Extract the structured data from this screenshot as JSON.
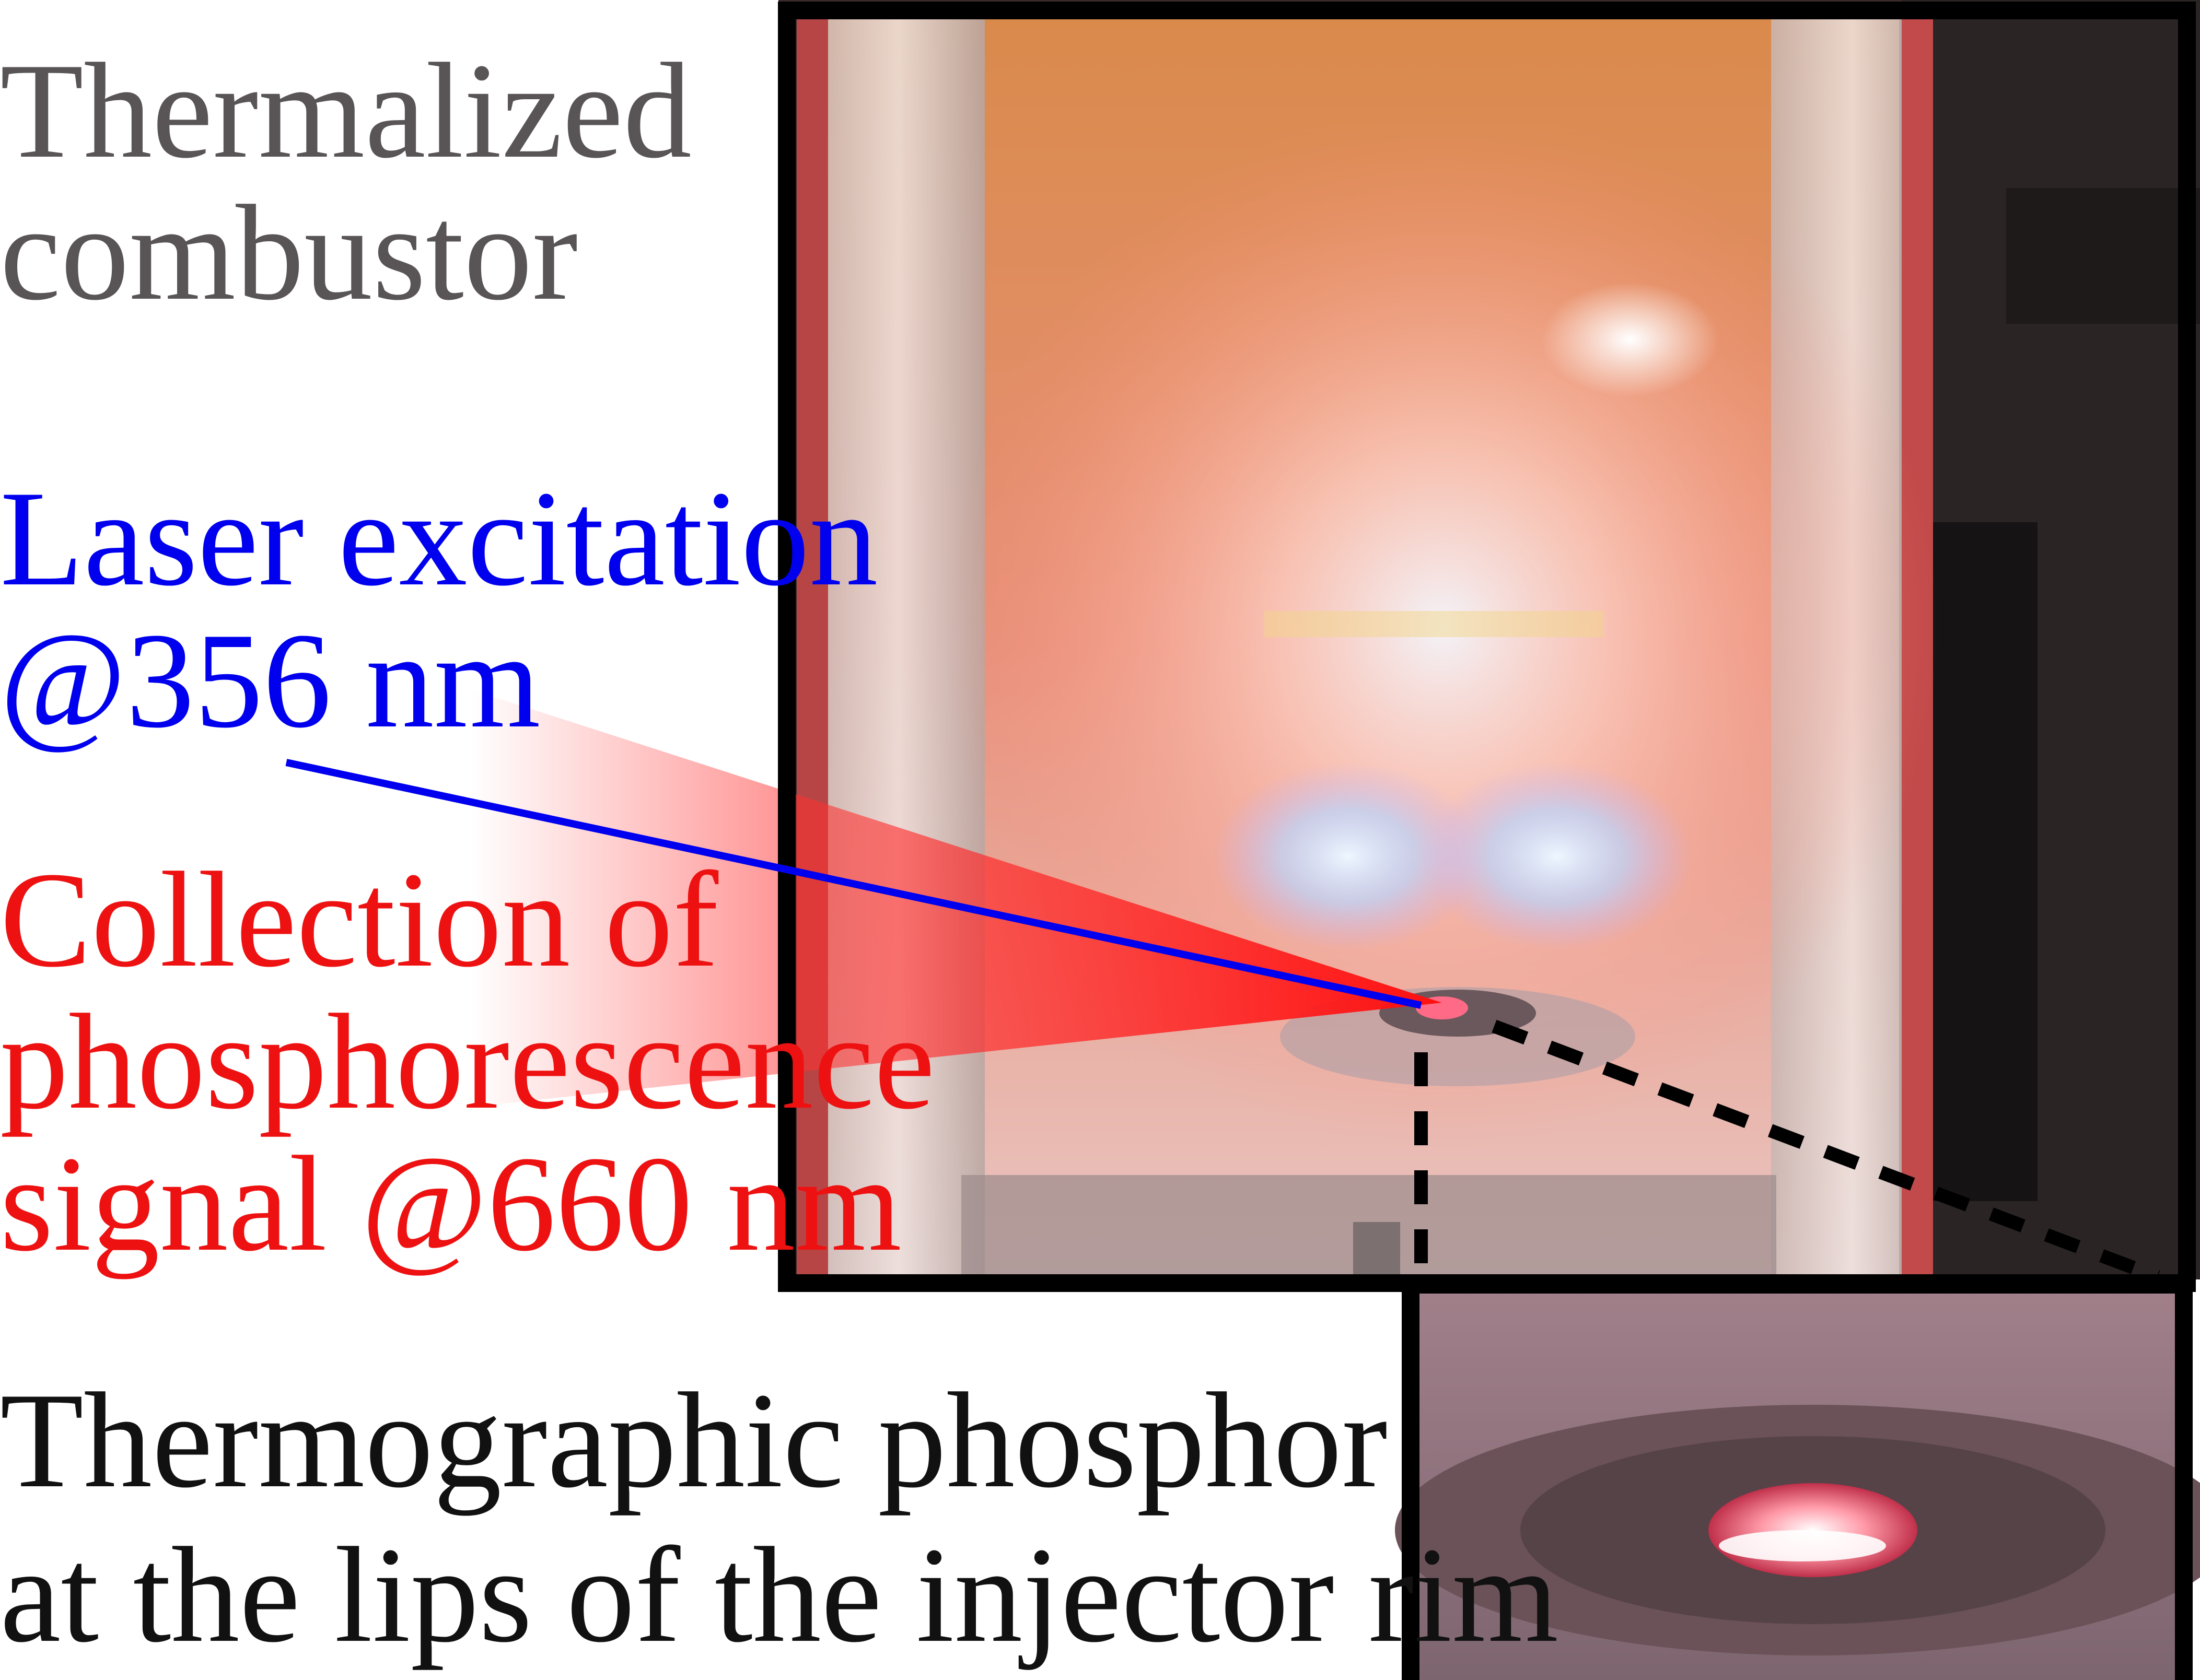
{
  "labels": {
    "thermalized": "Thermalized\ncombustor",
    "laser": "Laser excitation\n@356 nm",
    "collection": "Collection of\nphosphorescence\nsignal @660 nm",
    "phosphor": "Thermographic phosphor\nat the lips of the injector rim"
  },
  "colors": {
    "thermalized": "#595556",
    "laser": "#0000ee",
    "collection": "#ee1111",
    "phosphor": "#111111",
    "frame": "#000000",
    "flame_glow": "#e98a68",
    "flame_core": "#cfe6ff",
    "collection_beam": "#ff1a1a"
  }
}
